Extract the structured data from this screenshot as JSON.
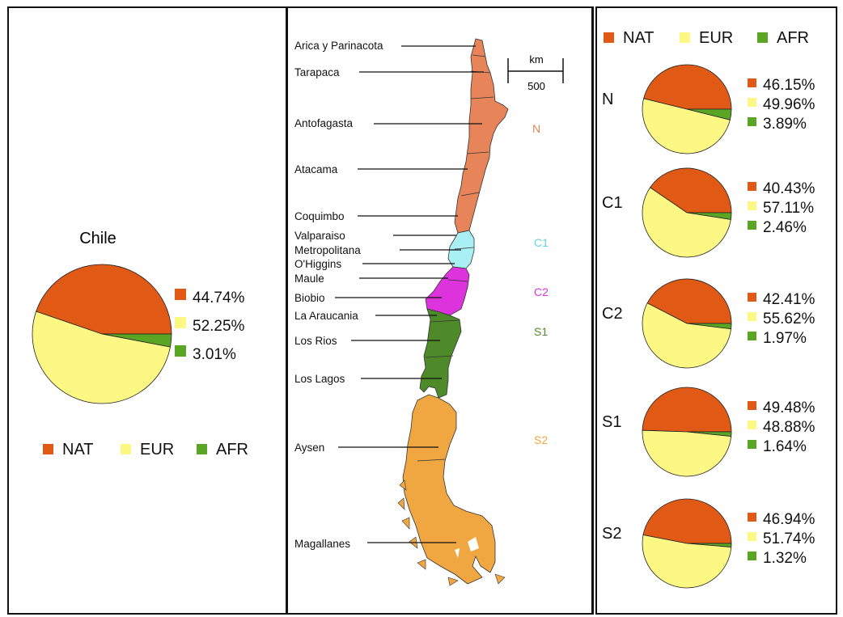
{
  "colors": {
    "NAT": "#e05a16",
    "EUR": "#fdf883",
    "AFR": "#5aa524",
    "map_N": "#e8845a",
    "map_C1": "#a9f0f4",
    "map_C2": "#dd33dd",
    "map_S1": "#4f8a2a",
    "map_S2": "#f0a742"
  },
  "legend": {
    "labels": [
      "NAT",
      "EUR",
      "AFR"
    ]
  },
  "chart_data": [
    {
      "type": "pie",
      "title": "Chile",
      "categories": [
        "NAT",
        "EUR",
        "AFR"
      ],
      "values": [
        44.74,
        52.25,
        3.01
      ],
      "labels": [
        "44.74%",
        "52.25%",
        "3.01%"
      ]
    },
    {
      "type": "pie",
      "title": "N",
      "categories": [
        "NAT",
        "EUR",
        "AFR"
      ],
      "values": [
        46.15,
        49.96,
        3.89
      ],
      "labels": [
        "46.15%",
        "49.96%",
        "3.89%"
      ]
    },
    {
      "type": "pie",
      "title": "C1",
      "categories": [
        "NAT",
        "EUR",
        "AFR"
      ],
      "values": [
        40.43,
        57.11,
        2.46
      ],
      "labels": [
        "40.43%",
        "57.11%",
        "2.46%"
      ]
    },
    {
      "type": "pie",
      "title": "C2",
      "categories": [
        "NAT",
        "EUR",
        "AFR"
      ],
      "values": [
        42.41,
        55.62,
        1.97
      ],
      "labels": [
        "42.41%",
        "55.62%",
        "1.97%"
      ]
    },
    {
      "type": "pie",
      "title": "S1",
      "categories": [
        "NAT",
        "EUR",
        "AFR"
      ],
      "values": [
        49.48,
        48.88,
        1.64
      ],
      "labels": [
        "49.48%",
        "48.88%",
        "1.64%"
      ]
    },
    {
      "type": "pie",
      "title": "S2",
      "categories": [
        "NAT",
        "EUR",
        "AFR"
      ],
      "values": [
        46.94,
        51.74,
        1.32
      ],
      "labels": [
        "46.94%",
        "51.74%",
        "1.32%"
      ]
    }
  ],
  "map": {
    "regions": [
      "Arica y Parinacota",
      "Tarapaca",
      "Antofagasta",
      "Atacama",
      "Coquimbo",
      "Valparaiso",
      "Metropolitana",
      "O'Higgins",
      "Maule",
      "Biobio",
      "La Araucania",
      "Los Rios",
      "Los Lagos",
      "Aysen",
      "Magallanes"
    ],
    "zones": [
      "N",
      "C1",
      "C2",
      "S1",
      "S2"
    ],
    "scale": {
      "unit": "km",
      "value": "500"
    }
  }
}
